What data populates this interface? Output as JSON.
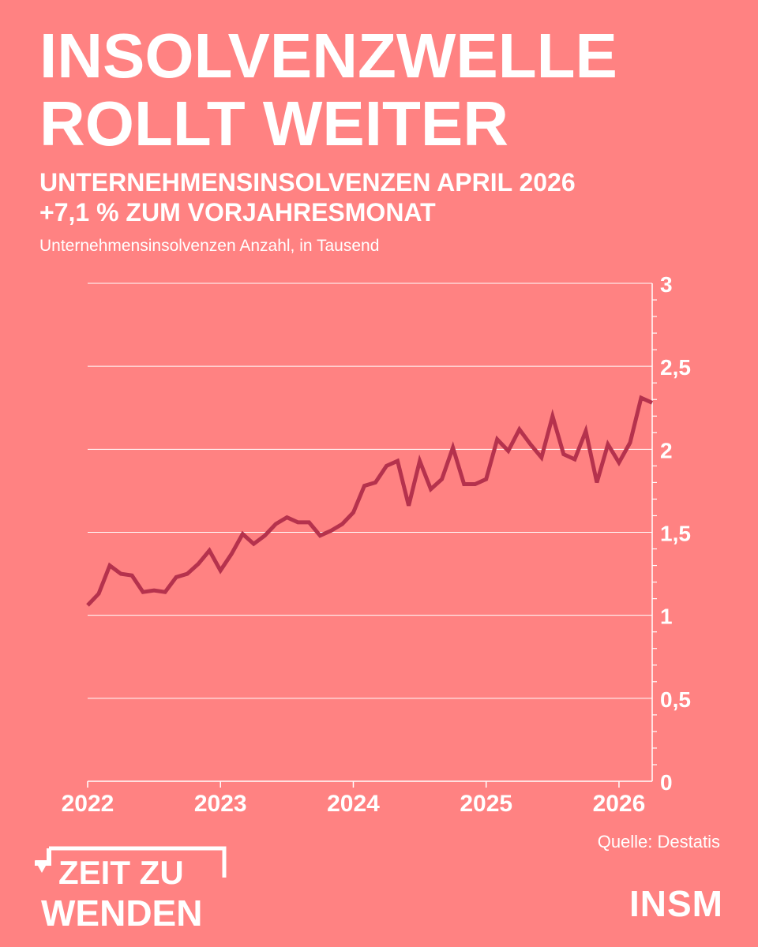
{
  "headline": {
    "line1": "INSOLVENZWELLE",
    "line2": "ROLLT WEITER"
  },
  "subheadline": {
    "line1": "UNTERNEHMENSINSOLVENZEN APRIL 2026",
    "line2": "+7,1 % ZUM VORJAHRESMONAT"
  },
  "source": "Quelle: Destatis",
  "logos": {
    "campaign_line1": "ZEIT ZU",
    "campaign_line2": "WENDEN",
    "brand": "INSM"
  },
  "colors": {
    "background": "#ff8282",
    "line": "#b5324d",
    "text": "#ffffff"
  },
  "chart_data": {
    "type": "line",
    "title": "",
    "ylabel": "Unternehmensinsolvenzen Anzahl, in Tausend",
    "xlabel": "",
    "ylim": [
      0,
      3
    ],
    "yticks": [
      0,
      0.5,
      1,
      1.5,
      2,
      2.5,
      3
    ],
    "ytick_labels": [
      "0",
      "0,5",
      "1",
      "1,5",
      "2",
      "2,5",
      "3"
    ],
    "xticks": [
      "2022",
      "2023",
      "2024",
      "2025",
      "2026"
    ],
    "grid": true,
    "y_axis_side": "right",
    "series": [
      {
        "name": "",
        "start": "2022-01",
        "frequency": "monthly",
        "values": [
          1.06,
          1.13,
          1.3,
          1.25,
          1.24,
          1.14,
          1.15,
          1.14,
          1.23,
          1.25,
          1.31,
          1.39,
          1.27,
          1.37,
          1.49,
          1.43,
          1.48,
          1.55,
          1.59,
          1.56,
          1.56,
          1.48,
          1.51,
          1.55,
          1.62,
          1.78,
          1.8,
          1.9,
          1.93,
          1.66,
          1.93,
          1.76,
          1.82,
          2.01,
          1.79,
          1.79,
          1.82,
          2.06,
          1.99,
          2.12,
          2.03,
          1.95,
          2.2,
          1.97,
          1.94,
          2.11,
          1.8,
          2.03,
          1.92,
          2.04,
          2.31,
          2.28
        ]
      }
    ]
  }
}
